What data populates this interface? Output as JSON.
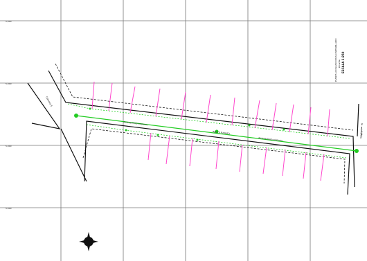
{
  "grid": {
    "row_labels": [
      "5,000",
      "5,000",
      "5,000",
      "5,000"
    ]
  },
  "streets": {
    "left": "Carrera 5",
    "center": "Carrera 4 Este",
    "right": "Calle 4"
  },
  "pipe_labels": {
    "upper": "Alcantarillado existente",
    "lower": "Alcantarillado existente"
  },
  "title_block": {
    "line1": "PLANTA LOCALIZACION ALCANTARILLADO",
    "line2": "PLUVIAL",
    "scale": "ESCALA 1:250"
  },
  "colors": {
    "pipe": "#22cc22",
    "laterals": "#ff44cc",
    "roads": "#111111",
    "grid": "#777777"
  },
  "icons": {
    "north_arrow": "north-arrow-icon"
  }
}
